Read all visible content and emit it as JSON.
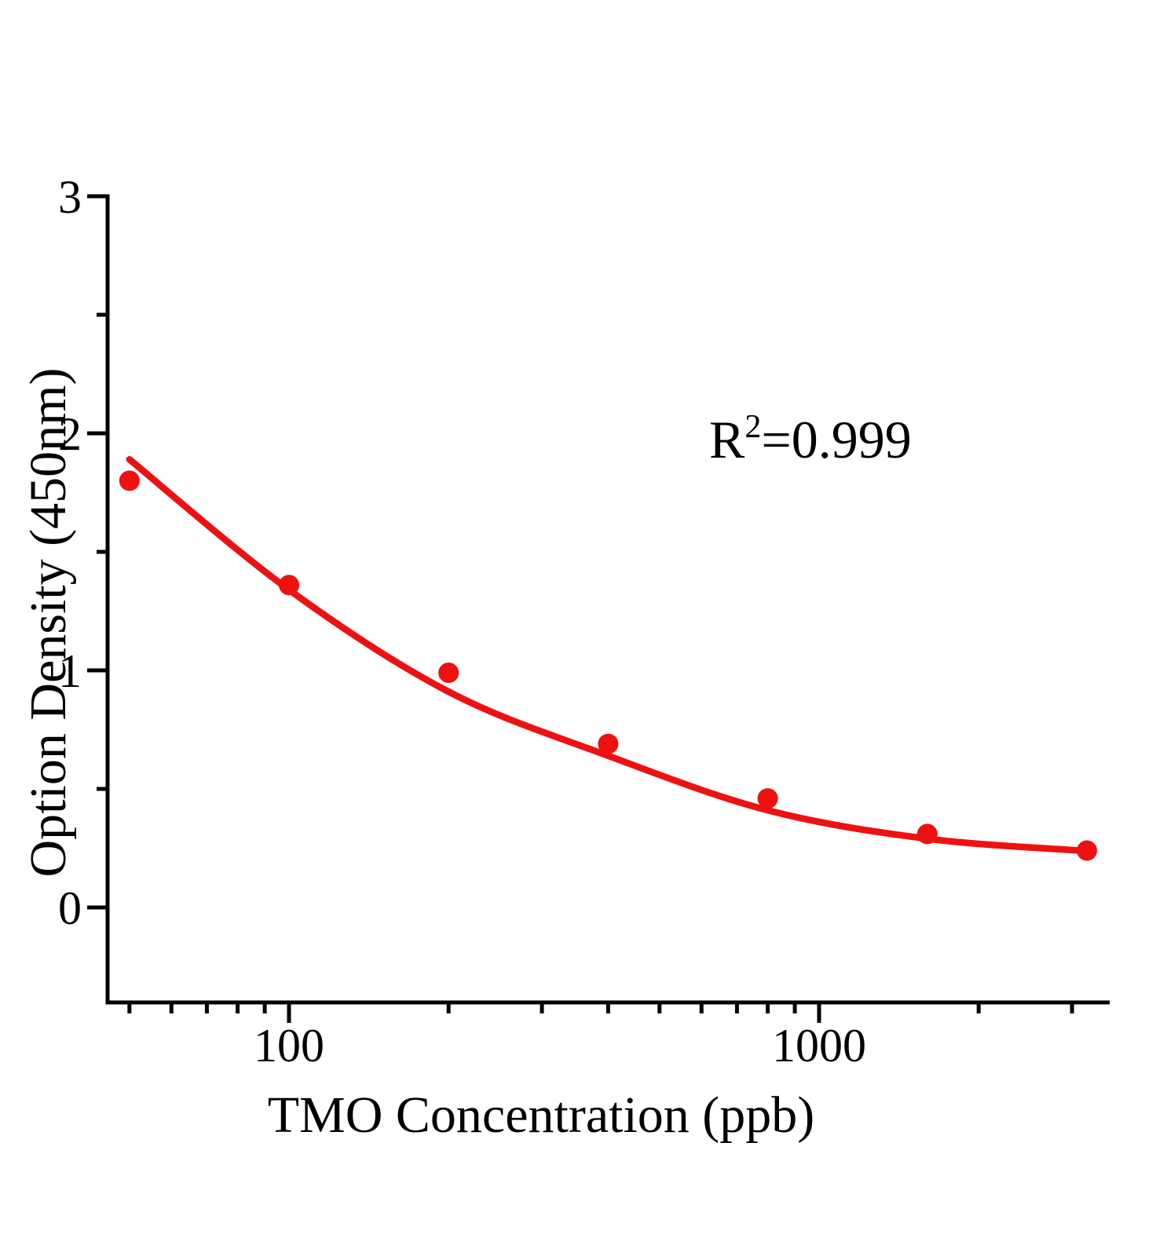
{
  "page": {
    "background": "#ffffff",
    "text_color": "#000000"
  },
  "chart_data": {
    "type": "scatter",
    "title": "",
    "xlabel": "TMO Concentration（ppb）",
    "ylabel": "Option Density（450nm）",
    "annotation": {
      "base": "R",
      "sup": "2",
      "rest": "=0.999",
      "r_squared": 0.999
    },
    "x_scale": "log",
    "x_range": [
      46,
      3570
    ],
    "y_range": [
      -0.4,
      3
    ],
    "grid": false,
    "legend": false,
    "axis_color": "#000000",
    "accent_color": "#ee1111",
    "x_ticks_major": [
      {
        "value": 100,
        "label": "100"
      },
      {
        "value": 1000,
        "label": "1000"
      }
    ],
    "x_ticks_minor": [
      50,
      60,
      70,
      80,
      90,
      200,
      300,
      400,
      500,
      600,
      700,
      800,
      900,
      2000,
      3000
    ],
    "y_ticks_major": [
      {
        "value": 0,
        "label": "0"
      },
      {
        "value": 1,
        "label": "1"
      },
      {
        "value": 2,
        "label": "2"
      },
      {
        "value": 3,
        "label": "3"
      }
    ],
    "y_ticks_minor": [
      0.5,
      1.5,
      2.5
    ],
    "series": [
      {
        "name": "standard-points",
        "type": "scatter",
        "color": "#ee1111",
        "points": [
          [
            50,
            1.8
          ],
          [
            100,
            1.36
          ],
          [
            200,
            0.99
          ],
          [
            400,
            0.69
          ],
          [
            800,
            0.46
          ],
          [
            1600,
            0.31
          ],
          [
            3200,
            0.24
          ]
        ]
      },
      {
        "name": "fit-curve",
        "type": "line",
        "color": "#ee1111",
        "points": [
          [
            50,
            1.89
          ],
          [
            100,
            1.34
          ],
          [
            200,
            0.91
          ],
          [
            400,
            0.64
          ],
          [
            800,
            0.41
          ],
          [
            1600,
            0.29
          ],
          [
            3200,
            0.238
          ]
        ]
      }
    ]
  }
}
